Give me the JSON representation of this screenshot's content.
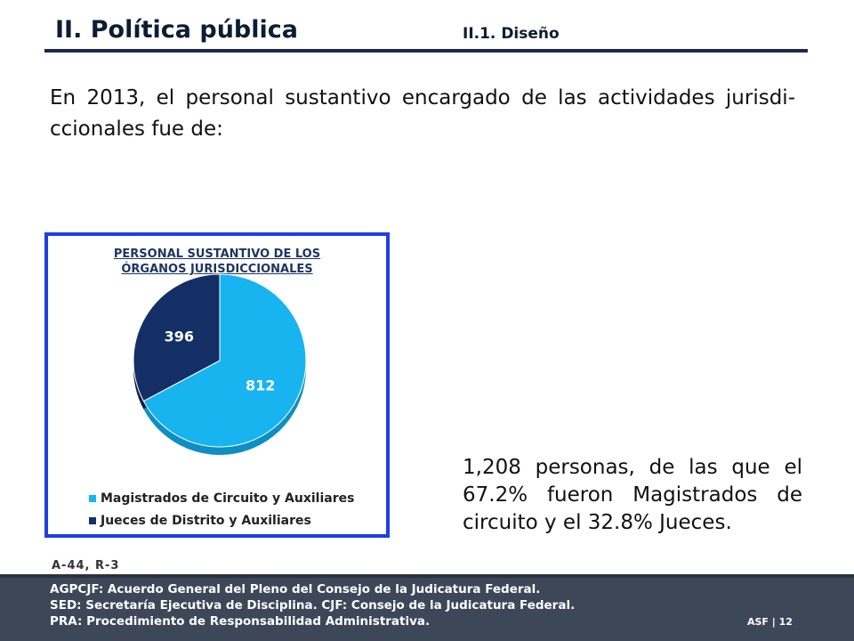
{
  "header": {
    "title": "II. Política pública",
    "section": "II.1. Diseño"
  },
  "intro_text": "En 2013, el personal sustantivo encargado de las actividades jurisdi-ccionales fue de:",
  "chart_data": {
    "type": "pie",
    "title_lines": [
      "PERSONAL SUSTANTIVO DE LOS",
      "ÓRGANOS JURISDICCIONALES"
    ],
    "categories": [
      "Magistrados de Circuito y Auxiliares",
      "Jueces de Distrito y Auxiliares"
    ],
    "values": [
      812,
      396
    ],
    "data_labels": [
      "812",
      "396"
    ],
    "colors": [
      "#17b4f0",
      "#142f66"
    ],
    "legend_position": "bottom"
  },
  "summary_text": "1,208 personas, de las que el 67.2% fueron Magistrados de circuito y el 32.8% Jueces.",
  "reference": "A-44, R-3",
  "footer": {
    "notes": [
      "AGPCJF: Acuerdo General del Pleno del Consejo de la Judicatura Federal.",
      "SED: Secretaría Ejecutiva de Disciplina. CJF: Consejo de la Judicatura  Federal.",
      "PRA: Procedimiento de Responsabilidad Administrativa."
    ],
    "page_tag": "ASF | 12"
  }
}
